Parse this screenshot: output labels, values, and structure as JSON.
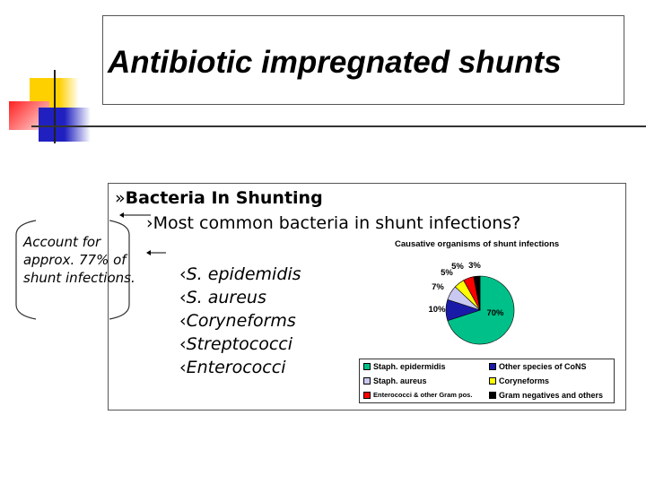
{
  "title": "Antibiotic impregnated shunts",
  "heading": "Bacteria In Shunting",
  "heading_bullet": "»",
  "question": "Most common bacteria in shunt infections?",
  "question_bullet": "›",
  "organisms_bullet": "‹",
  "organisms": [
    "S. epidemidis",
    "S. aureus",
    "Coryneforms",
    "Streptococci",
    "Enterococci"
  ],
  "note": "Account for approx. 77% of shunt infections.",
  "chart_data": {
    "type": "pie",
    "title": "Causative organisms of shunt infections",
    "categories": [
      "Staph. epidermidis",
      "Other species of CoNS",
      "Staph. aureus",
      "Coryneforms",
      "Enterococci & other Gram pos.",
      "Gram negatives and others"
    ],
    "values": [
      70,
      10,
      7,
      5,
      5,
      3
    ],
    "labels": [
      "70%",
      "10%",
      "7%",
      "5%",
      "5%",
      "3%"
    ],
    "colors": [
      "#00c08a",
      "#1a1aa8",
      "#c8c8f0",
      "#ffff00",
      "#ff0000",
      "#000000"
    ],
    "legend": "bottom"
  }
}
